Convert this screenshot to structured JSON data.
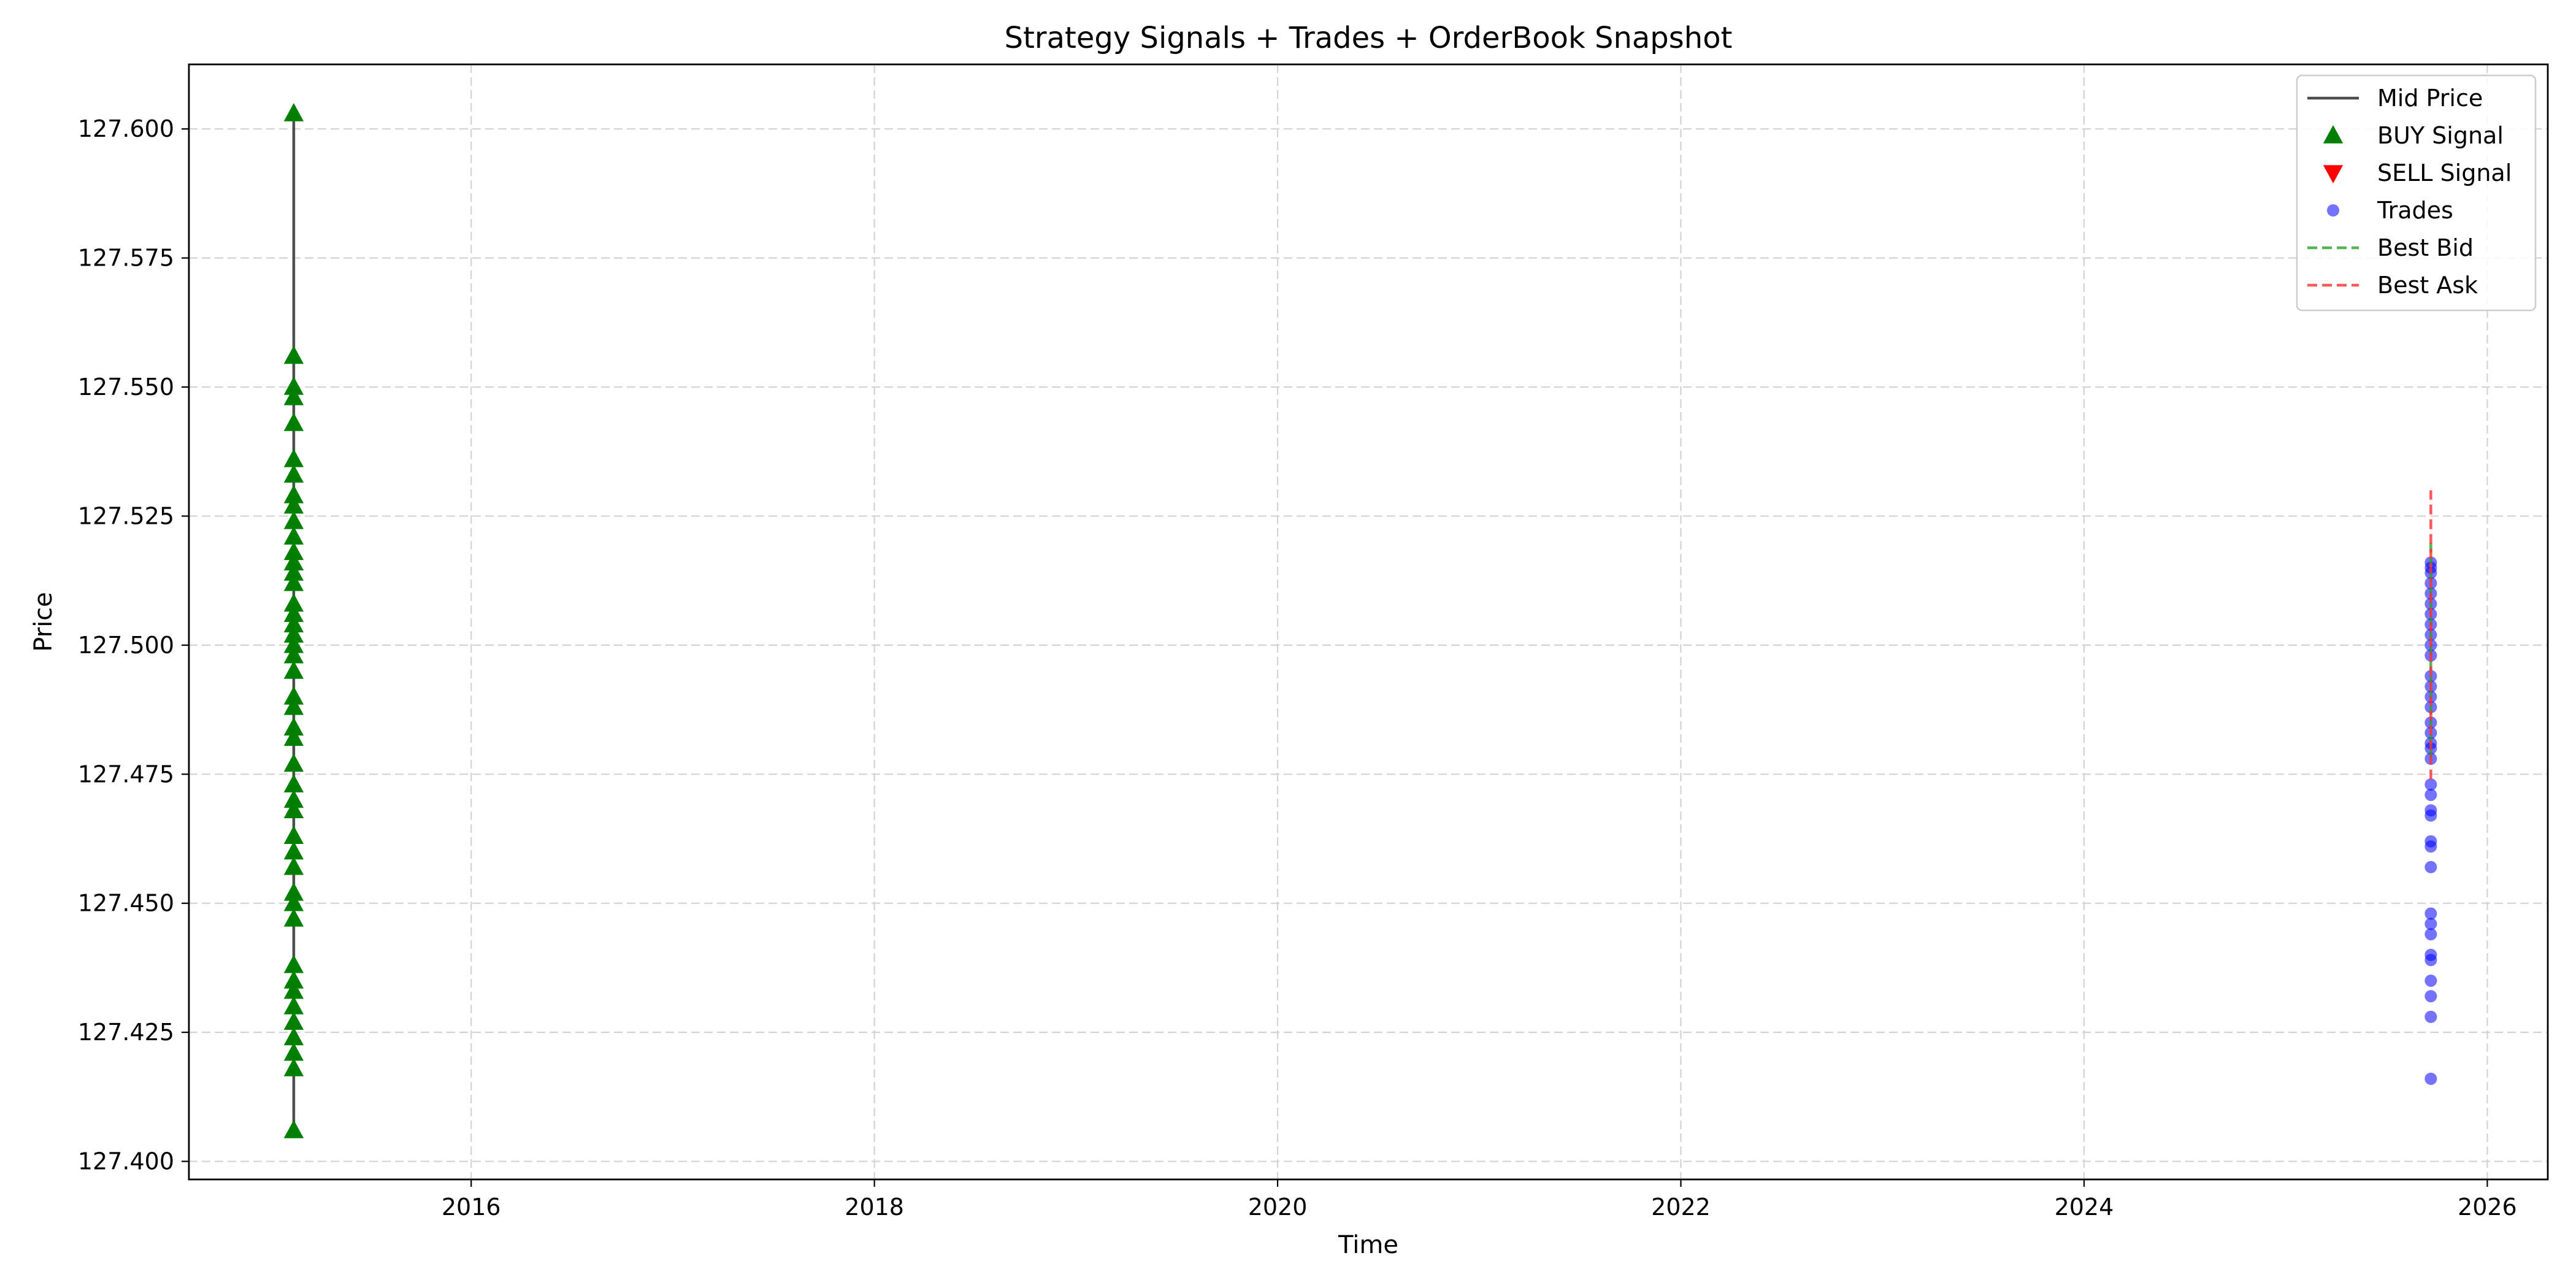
{
  "chart_data": {
    "type": "scatter",
    "title": "Strategy Signals + Trades + OrderBook Snapshot",
    "xlabel": "Time",
    "ylabel": "Price",
    "xlim": [
      2014.6,
      2026.3
    ],
    "ylim": [
      127.3965,
      127.6125
    ],
    "x_ticks": [
      2016,
      2018,
      2020,
      2022,
      2024,
      2026
    ],
    "x_tick_labels": [
      "2016",
      "2018",
      "2020",
      "2022",
      "2024",
      "2026"
    ],
    "y_ticks": [
      127.4,
      127.425,
      127.45,
      127.475,
      127.5,
      127.525,
      127.55,
      127.575,
      127.6
    ],
    "y_tick_labels": [
      "127.400",
      "127.425",
      "127.450",
      "127.475",
      "127.500",
      "127.525",
      "127.550",
      "127.575",
      "127.600"
    ],
    "grid": true,
    "legend_position": "top-right",
    "legend": [
      "Mid Price",
      "BUY Signal",
      "SELL Signal",
      "Trades",
      "Best Bid",
      "Best Ask"
    ],
    "colors": {
      "mid_price": "#4d4d4d",
      "buy": "#007f00",
      "sell": "#ff0000",
      "trades": "#0000ff",
      "best_bid": "#2ca02c",
      "best_ask": "#ff3030",
      "grid": "#d3d3d3"
    },
    "series": [
      {
        "name": "Mid Price",
        "kind": "line",
        "x": [
          2015.12,
          2015.12
        ],
        "y": [
          127.406,
          127.603
        ]
      },
      {
        "name": "BUY Signal",
        "kind": "marker-up",
        "x": 2015.12,
        "y": [
          127.603,
          127.556,
          127.55,
          127.548,
          127.543,
          127.536,
          127.533,
          127.529,
          127.527,
          127.524,
          127.521,
          127.518,
          127.516,
          127.514,
          127.512,
          127.508,
          127.506,
          127.504,
          127.502,
          127.5,
          127.498,
          127.495,
          127.49,
          127.488,
          127.484,
          127.482,
          127.477,
          127.473,
          127.47,
          127.468,
          127.463,
          127.46,
          127.457,
          127.452,
          127.45,
          127.447,
          127.438,
          127.435,
          127.433,
          127.43,
          127.427,
          127.424,
          127.421,
          127.418,
          127.406
        ]
      },
      {
        "name": "SELL Signal",
        "kind": "marker-down",
        "x": [],
        "y": []
      },
      {
        "name": "Trades",
        "kind": "marker-dot",
        "x": 2025.72,
        "y": [
          127.516,
          127.515,
          127.514,
          127.512,
          127.51,
          127.508,
          127.506,
          127.504,
          127.502,
          127.5,
          127.498,
          127.494,
          127.492,
          127.49,
          127.488,
          127.485,
          127.483,
          127.481,
          127.48,
          127.478,
          127.473,
          127.471,
          127.468,
          127.467,
          127.462,
          127.461,
          127.457,
          127.448,
          127.446,
          127.444,
          127.44,
          127.439,
          127.435,
          127.432,
          127.428,
          127.416
        ]
      },
      {
        "name": "Best Bid",
        "kind": "dashed-line",
        "x": [
          2025.72,
          2025.72
        ],
        "y": [
          127.478,
          127.52
        ]
      },
      {
        "name": "Best Ask",
        "kind": "dashed-line",
        "x": [
          2025.72,
          2025.72
        ],
        "y": [
          127.474,
          127.53
        ]
      }
    ]
  }
}
